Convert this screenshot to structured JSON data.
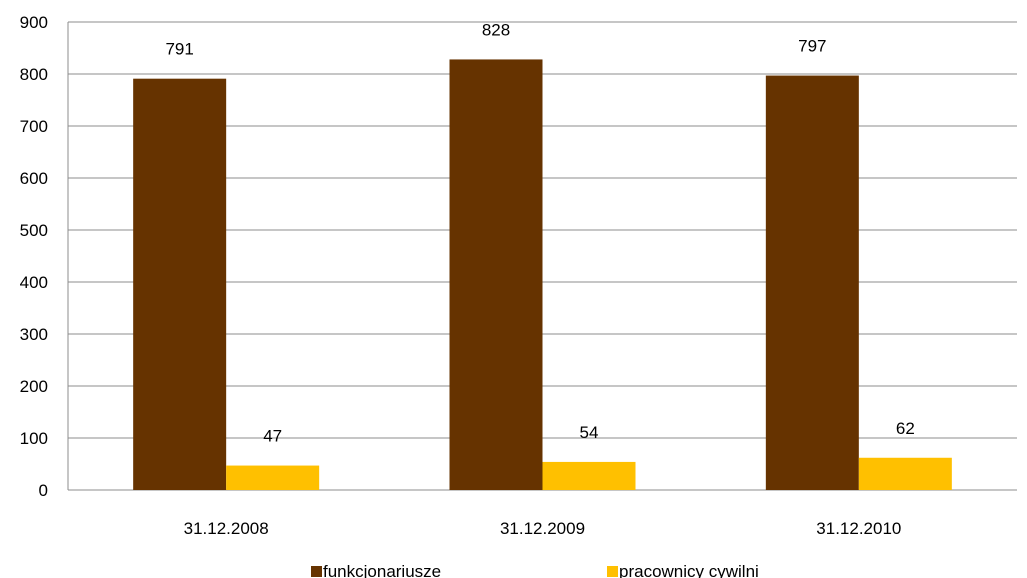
{
  "chart_data": {
    "type": "bar",
    "categories": [
      "31.12.2008",
      "31.12.2009",
      "31.12.2010"
    ],
    "series": [
      {
        "name": "funkcjonariusze",
        "values": [
          791,
          828,
          797
        ],
        "color": "#663300"
      },
      {
        "name": "pracownicy cywilni",
        "values": [
          47,
          54,
          62
        ],
        "color": "#FFC000"
      }
    ],
    "ylim": [
      0,
      900
    ],
    "yticks": [
      0,
      100,
      200,
      300,
      400,
      500,
      600,
      700,
      800,
      900
    ],
    "grid": true,
    "legend": "bottom",
    "title": "",
    "xlabel": "",
    "ylabel": ""
  }
}
